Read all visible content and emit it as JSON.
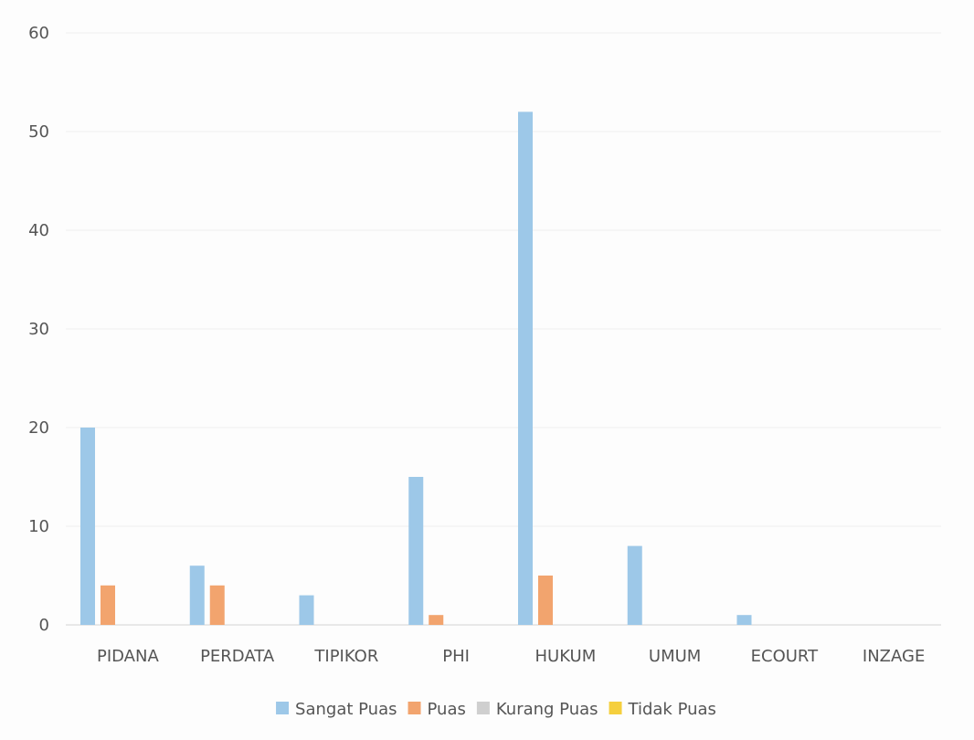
{
  "chart_data": {
    "type": "bar",
    "title": "",
    "xlabel": "",
    "ylabel": "",
    "ylim": [
      0,
      60
    ],
    "yticks": [
      0,
      10,
      20,
      30,
      40,
      50,
      60
    ],
    "grid": true,
    "legend_position": "bottom",
    "categories": [
      "PIDANA",
      "PERDATA",
      "TIPIKOR",
      "PHI",
      "HUKUM",
      "UMUM",
      "ECOURT",
      "INZAGE"
    ],
    "series": [
      {
        "name": "Sangat Puas",
        "color": "#9dc8e8",
        "values": [
          20,
          6,
          3,
          15,
          52,
          8,
          1,
          0
        ]
      },
      {
        "name": "Puas",
        "color": "#f2a46e",
        "values": [
          4,
          4,
          0,
          1,
          5,
          0,
          0,
          0
        ]
      },
      {
        "name": "Kurang Puas",
        "color": "#cfcfcf",
        "values": [
          0,
          0,
          0,
          0,
          0,
          0,
          0,
          0
        ]
      },
      {
        "name": "Tidak Puas",
        "color": "#f5cf3d",
        "values": [
          0,
          0,
          0,
          0,
          0,
          0,
          0,
          0
        ]
      }
    ]
  }
}
